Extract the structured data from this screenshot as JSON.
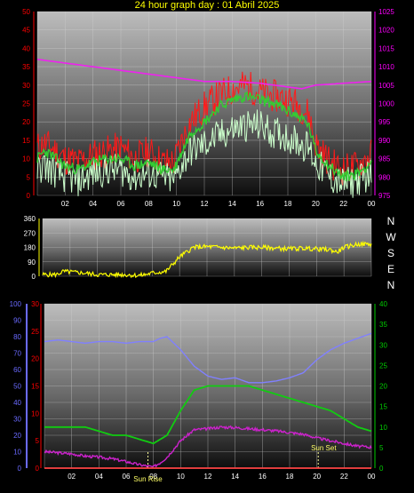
{
  "title": "24 hour graph day : 01 Abril 2025",
  "compass": [
    "N",
    "W",
    "S",
    "E",
    "N"
  ],
  "colors": {
    "temp_max": "#ff1a1a",
    "temp_avg": "#33cc33",
    "temp_min": "#ccffcc",
    "pressure": "#ee22ee",
    "wind_dir": "#ffff00",
    "humidity": "#8080ff",
    "uv": "#ff4444",
    "solar": "#11cc11",
    "temp2": "#cc22cc",
    "left_axis_red": "#ff0000",
    "left_axis_blue": "#6a6aff",
    "right_axis_magenta": "#ff00ff",
    "right_axis_green": "#00cc00"
  },
  "chart_data": [
    {
      "type": "line",
      "x_ticks": [
        "02",
        "04",
        "06",
        "08",
        "10",
        "12",
        "14",
        "16",
        "18",
        "20",
        "22",
        "00"
      ],
      "y_left": {
        "ticks": [
          "0",
          "5",
          "10",
          "15",
          "20",
          "25",
          "30",
          "35",
          "40",
          "45",
          "50"
        ],
        "range": [
          0,
          50
        ]
      },
      "y_right": {
        "ticks": [
          "975",
          "980",
          "985",
          "990",
          "995",
          "1000",
          "1005",
          "1010",
          "1015",
          "1020",
          "1025"
        ],
        "range": [
          975,
          1025
        ]
      },
      "grid": true,
      "series": [
        {
          "key": "pressure",
          "x": [
            0,
            2,
            4,
            6,
            8,
            10,
            12,
            14,
            16,
            18,
            19,
            20,
            22,
            24
          ],
          "y": [
            1012,
            1011,
            1010,
            1009,
            1008,
            1007,
            1006,
            1006,
            1005.5,
            1004.5,
            1004,
            1005,
            1005.5,
            1006
          ]
        },
        {
          "key": "temp_max",
          "x": [
            0,
            0.5,
            1,
            2,
            3,
            4,
            5,
            6,
            7,
            8,
            9,
            9.8,
            10.3,
            11,
            12,
            13,
            14,
            15,
            16,
            17,
            18,
            19,
            19.5,
            20,
            21,
            22,
            23,
            24
          ],
          "y": [
            13,
            14,
            13,
            10,
            9,
            11,
            12,
            13,
            10,
            12,
            9,
            9,
            14,
            20,
            24,
            27,
            29,
            30,
            28,
            27,
            26,
            24,
            22,
            14,
            9,
            7,
            8,
            11
          ]
        },
        {
          "key": "temp_avg",
          "x": [
            0,
            0.5,
            1,
            2,
            3,
            4,
            5,
            6,
            7,
            8,
            9,
            9.8,
            10.3,
            11,
            12,
            13,
            14,
            15,
            16,
            17,
            18,
            19,
            19.5,
            20,
            21,
            22,
            23,
            24
          ],
          "y": [
            10,
            12,
            11,
            8,
            7,
            9,
            10,
            10,
            8,
            9,
            7,
            7,
            11,
            17,
            20,
            24,
            26,
            27,
            26,
            25,
            23,
            21,
            19,
            12,
            8,
            5,
            6,
            9
          ]
        },
        {
          "key": "temp_min",
          "x": [
            0,
            0.5,
            1,
            2,
            3,
            4,
            5,
            6,
            7,
            8,
            9,
            9.8,
            10.3,
            11,
            12,
            13,
            14,
            15,
            16,
            17,
            18,
            19,
            19.5,
            20,
            21,
            22,
            23,
            24
          ],
          "y": [
            7,
            8,
            7,
            5,
            4,
            6,
            7,
            7,
            5,
            6,
            5,
            4,
            8,
            12,
            14,
            16,
            18,
            19,
            19,
            17,
            16,
            14,
            13,
            9,
            5,
            3,
            4,
            6
          ]
        }
      ]
    },
    {
      "type": "line",
      "y_left": {
        "ticks": [
          "0",
          "90",
          "180",
          "270",
          "360"
        ],
        "range": [
          0,
          360
        ]
      },
      "grid": true,
      "series": [
        {
          "key": "wind_dir",
          "x": [
            0,
            1,
            1.5,
            3,
            4,
            5,
            6,
            7,
            7.5,
            8,
            9,
            10,
            10.5,
            11,
            12,
            13,
            14,
            15,
            16,
            17,
            18,
            19,
            20,
            21,
            21.5,
            22,
            23,
            24
          ],
          "y": [
            10,
            10,
            30,
            20,
            10,
            10,
            10,
            5,
            10,
            20,
            30,
            120,
            150,
            180,
            185,
            180,
            175,
            180,
            180,
            175,
            170,
            175,
            170,
            165,
            150,
            180,
            200,
            200
          ]
        }
      ]
    },
    {
      "type": "line",
      "x_ticks": [
        "02",
        "04",
        "06",
        "08",
        "10",
        "12",
        "14",
        "16",
        "18",
        "20",
        "22",
        "00"
      ],
      "y_left_blue": {
        "ticks": [
          "0",
          "10",
          "20",
          "30",
          "40",
          "50",
          "60",
          "70",
          "80",
          "90",
          "100"
        ],
        "range": [
          0,
          100
        ]
      },
      "y_left_red": {
        "ticks": [
          "0",
          "5",
          "10",
          "15",
          "20",
          "25",
          "30"
        ],
        "range": [
          0,
          30
        ]
      },
      "y_right": {
        "ticks": [
          "0",
          "5",
          "10",
          "15",
          "20",
          "25",
          "30",
          "35",
          "40"
        ],
        "range": [
          0,
          40
        ]
      },
      "annotations": [
        "Sun Rise",
        "Sun Set"
      ],
      "grid": true,
      "series": [
        {
          "key": "humidity",
          "x": [
            0,
            1,
            2,
            3,
            4,
            5,
            6,
            7,
            8,
            8.5,
            9,
            10,
            11,
            12,
            13,
            14,
            15,
            16,
            17,
            18,
            19,
            20,
            21,
            22,
            23,
            24
          ],
          "y": [
            77,
            78,
            77,
            76,
            77,
            77,
            76,
            77,
            77,
            79,
            80,
            72,
            62,
            56,
            54,
            55,
            52,
            52,
            53,
            55,
            58,
            66,
            72,
            76,
            79,
            82
          ]
        },
        {
          "key": "solar",
          "x": [
            0,
            1,
            2,
            3,
            4,
            5,
            6,
            7,
            8,
            8.5,
            9,
            10,
            11,
            12,
            13,
            14,
            15,
            16,
            17,
            18,
            19,
            20,
            21,
            22,
            23,
            24
          ],
          "y": [
            10,
            10,
            10,
            10,
            9,
            8,
            8,
            7,
            6,
            7,
            8,
            14,
            19,
            20,
            20,
            20,
            20,
            19,
            18,
            17,
            16,
            15,
            14,
            12,
            10,
            9
          ]
        },
        {
          "key": "temp2",
          "x": [
            0,
            1,
            2,
            3,
            4,
            5,
            6,
            7,
            8,
            8.5,
            9,
            10,
            11,
            12,
            13,
            14,
            15,
            16,
            17,
            18,
            19,
            20,
            21,
            22,
            23,
            24
          ],
          "y": [
            3,
            2.8,
            2.6,
            2.2,
            2,
            1.7,
            1.2,
            0.6,
            0.2,
            1,
            2,
            5,
            7,
            7.2,
            7.5,
            7.4,
            7.2,
            7,
            6.8,
            6.5,
            6.2,
            5.5,
            5,
            4.5,
            4,
            3.8
          ]
        },
        {
          "key": "uv",
          "x": [
            0,
            24
          ],
          "y": [
            0,
            0
          ]
        }
      ]
    }
  ]
}
